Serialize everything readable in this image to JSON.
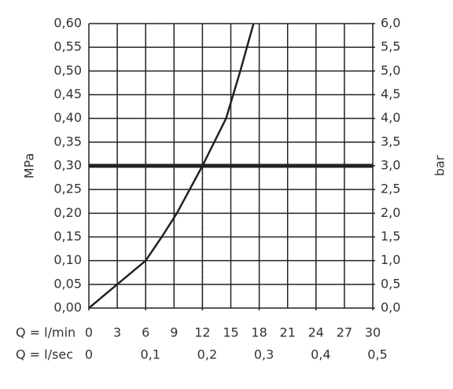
{
  "chart_data": {
    "type": "line",
    "ylabel": "MPa",
    "y2label": "bar",
    "xlabel": "Q = l/min",
    "x2label": "Q = l/sec",
    "x": [
      0,
      3,
      6,
      7.7,
      9.3,
      12,
      14.5,
      16,
      17.4
    ],
    "series": [
      {
        "color": "#222222",
        "values": [
          0,
          0.05,
          0.1,
          0.15,
          0.2,
          0.3,
          0.4,
          0.5,
          0.6
        ]
      }
    ],
    "xlim": [
      0,
      30
    ],
    "xticks": [
      0,
      3,
      6,
      9,
      12,
      15,
      18,
      21,
      24,
      27,
      30
    ],
    "x2lim": [
      0,
      0.5
    ],
    "x2ticks": [
      0,
      {
        "value": 0.1,
        "label": "0,1"
      },
      {
        "value": 0.2,
        "label": "0,2"
      },
      {
        "value": 0.3,
        "label": "0,3"
      },
      {
        "value": 0.4,
        "label": "0,4"
      },
      {
        "value": 0.5,
        "label": "0,5"
      }
    ],
    "ylim": [
      0,
      0.6
    ],
    "yticks": [
      {
        "value": 0,
        "label": "0,00"
      },
      {
        "value": 0.05,
        "label": "0,05"
      },
      {
        "value": 0.1,
        "label": "0,10"
      },
      {
        "value": 0.15,
        "label": "0,15"
      },
      {
        "value": 0.2,
        "label": "0,20"
      },
      {
        "value": 0.25,
        "label": "0,25"
      },
      {
        "value": 0.3,
        "label": "0,30"
      },
      {
        "value": 0.35,
        "label": "0,35"
      },
      {
        "value": 0.4,
        "label": "0,40"
      },
      {
        "value": 0.45,
        "label": "0,45"
      },
      {
        "value": 0.5,
        "label": "0,50"
      },
      {
        "value": 0.55,
        "label": "0,55"
      },
      {
        "value": 0.6,
        "label": "0,60"
      }
    ],
    "y2lim": [
      0,
      6
    ],
    "y2ticks": [
      {
        "value": 0,
        "label": "0,0"
      },
      {
        "value": 0.5,
        "label": "0,5"
      },
      {
        "value": 1,
        "label": "1,0"
      },
      {
        "value": 1.5,
        "label": "1,5"
      },
      {
        "value": 2,
        "label": "2,0"
      },
      {
        "value": 2.5,
        "label": "2,5"
      },
      {
        "value": 3,
        "label": "3,0"
      },
      {
        "value": 3.5,
        "label": "3,5"
      },
      {
        "value": 4,
        "label": "4,0"
      },
      {
        "value": 4.5,
        "label": "4,5"
      },
      {
        "value": 5,
        "label": "5,0"
      },
      {
        "value": 5.5,
        "label": "5,5"
      },
      {
        "value": 6,
        "label": "6,0"
      }
    ],
    "hline": 0.3,
    "vline": 12,
    "grid": true
  }
}
